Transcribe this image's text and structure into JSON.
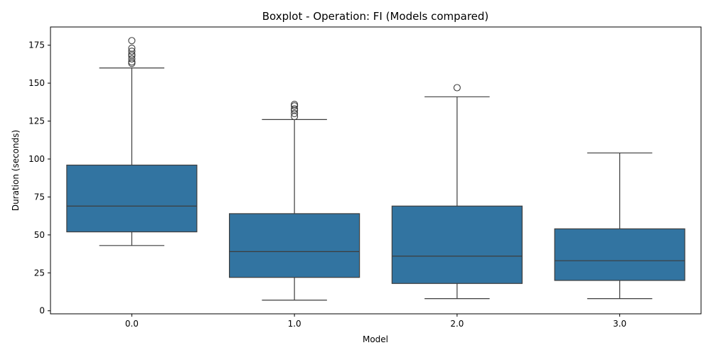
{
  "chart_data": {
    "type": "boxplot",
    "title": "Boxplot - Operation: FI (Models compared)",
    "xlabel": "Model",
    "ylabel": "Duration (seconds)",
    "categories": [
      "0.0",
      "1.0",
      "2.0",
      "3.0"
    ],
    "yticks": [
      "0",
      "25",
      "50",
      "75",
      "100",
      "125",
      "150",
      "175"
    ],
    "ylim": [
      -2,
      187
    ],
    "grid": false,
    "colors": {
      "box_fill": "#3274a1",
      "line": "#3d3d3d",
      "axis": "#000000"
    },
    "boxes": [
      {
        "category": "0.0",
        "whisker_low": 43,
        "q1": 52,
        "median": 69,
        "q3": 96,
        "whisker_high": 160,
        "outliers": [
          163,
          164,
          166,
          168,
          169,
          171,
          173,
          178
        ]
      },
      {
        "category": "1.0",
        "whisker_low": 7,
        "q1": 22,
        "median": 39,
        "q3": 64,
        "whisker_high": 126,
        "outliers": [
          128,
          130,
          132,
          133,
          135,
          136
        ]
      },
      {
        "category": "2.0",
        "whisker_low": 8,
        "q1": 18,
        "median": 36,
        "q3": 69,
        "whisker_high": 141,
        "outliers": [
          147
        ]
      },
      {
        "category": "3.0",
        "whisker_low": 8,
        "q1": 20,
        "median": 33,
        "q3": 54,
        "whisker_high": 104,
        "outliers": []
      }
    ]
  }
}
